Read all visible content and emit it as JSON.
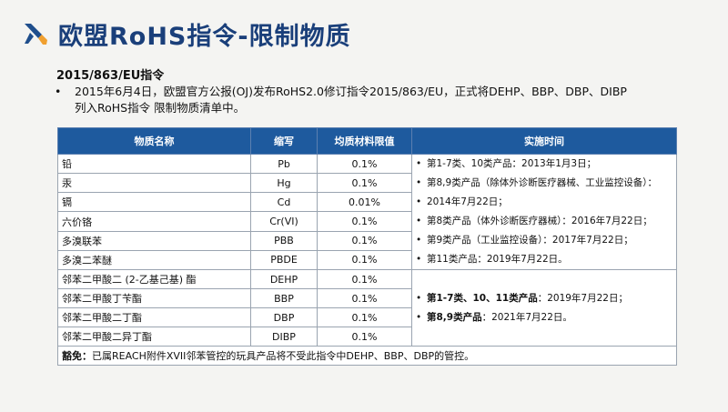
{
  "page": {
    "title": "欧盟RoHS指令-限制物质",
    "subtitle": "2015/863/EU指令",
    "bullet_line1": "2015年6月4日，欧盟官方公报(OJ)发布RoHS2.0修订指令2015/863/EU，正式将DEHP、BBP、DBP、DIBP",
    "bullet_line2": "列入RoHS指令 限制物质清单中。"
  },
  "table": {
    "headers": [
      "物质名称",
      "缩写",
      "均质材料限值",
      "实施时间"
    ],
    "rows": [
      {
        "name": "铅",
        "abbr": "Pb",
        "limit": "0.1%"
      },
      {
        "name": "汞",
        "abbr": "Hg",
        "limit": "0.1%"
      },
      {
        "name": "镉",
        "abbr": "Cd",
        "limit": "0.01%"
      },
      {
        "name": "六价铬",
        "abbr": "Cr(VI)",
        "limit": "0.1%"
      },
      {
        "name": "多溴联苯",
        "abbr": "PBB",
        "limit": "0.1%"
      },
      {
        "name": "多溴二苯醚",
        "abbr": "PBDE",
        "limit": "0.1%"
      },
      {
        "name": "邻苯二甲酸二 (2-乙基己基) 酯",
        "abbr": "DEHP",
        "limit": "0.1%"
      },
      {
        "name": "邻苯二甲酸丁苄酯",
        "abbr": "BBP",
        "limit": "0.1%"
      },
      {
        "name": "邻苯二甲酸二丁酯",
        "abbr": "DBP",
        "limit": "0.1%"
      },
      {
        "name": "邻苯二甲酸二异丁酯",
        "abbr": "DIBP",
        "limit": "0.1%"
      }
    ],
    "impl_group1": [
      "第1-7类、10类产品：2013年1月3日；",
      "第8,9类产品（除体外诊断医疗器械、工业监控设备）：",
      "2014年7月22日；",
      "第8类产品（体外诊断医疗器械）：2016年7月22日；",
      "第9类产品（工业监控设备）：2017年7月22日；",
      "第11类产品：2019年7月22日。"
    ],
    "impl_group2": [
      {
        "bold": "第1-7类、10、11类产品",
        "rest": "：2019年7月22日；"
      },
      {
        "bold": "第8,9类产品",
        "rest": "：2021年7月22日。"
      }
    ],
    "exempt_label": "豁免：",
    "exempt_text": "已属REACH附件XVII邻苯管控的玩具产品将不受此指令中DEHP、BBP、DBP的管控。"
  },
  "colors": {
    "title": "#1a3f7a",
    "header_bg": "#1e5a9e",
    "logo_blue": "#1f4e8c",
    "logo_orange": "#f0a030"
  },
  "icons": {
    "logo": "crossed-tools-icon"
  }
}
